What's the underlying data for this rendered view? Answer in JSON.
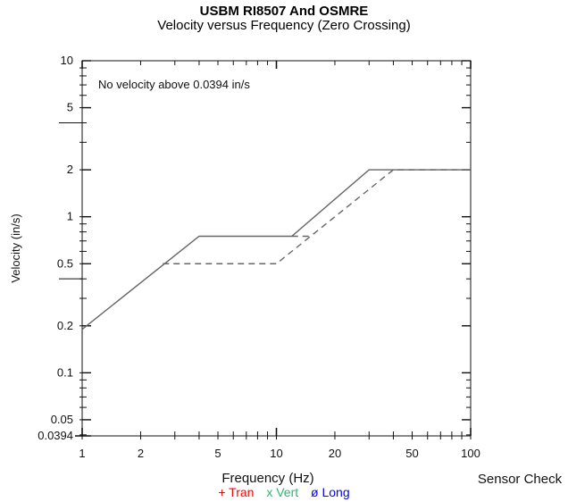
{
  "chart_data": {
    "type": "line",
    "title": "USBM RI8507 And OSMRE",
    "subtitle": "Velocity versus Frequency (Zero Crossing)",
    "xlabel": "Frequency (Hz)",
    "ylabel": "Velocity (in/s)",
    "xscale": "log",
    "yscale": "log",
    "xlim": [
      1,
      100
    ],
    "ylim": [
      0.0394,
      10
    ],
    "x_ticks": [
      1,
      2,
      5,
      10,
      20,
      50,
      100
    ],
    "y_ticks": [
      0.0394,
      0.05,
      0.1,
      0.2,
      0.5,
      1,
      2,
      5,
      10
    ],
    "y_tick_labels": [
      "0.0394",
      "0.05",
      "0.1",
      "0.2",
      "0.5",
      "1",
      "2",
      "5",
      "10"
    ],
    "grid": false,
    "annotation": "No velocity above 0.0394 in/s",
    "side_label": "Sensor Check",
    "series": [
      {
        "style": "solid",
        "x": [
          1,
          4,
          12,
          30,
          100
        ],
        "y": [
          0.19,
          0.75,
          0.75,
          2.0,
          2.0
        ]
      },
      {
        "style": "dashed",
        "x": [
          2.6,
          10,
          40,
          100
        ],
        "y": [
          0.5,
          0.5,
          2.0,
          2.0
        ]
      },
      {
        "style": "dashed",
        "x": [
          12,
          15
        ],
        "y": [
          0.75,
          0.75
        ]
      }
    ],
    "legend": [
      {
        "label": "+ Tran",
        "color": "#ff0000"
      },
      {
        "label": "x Vert",
        "color": "#2bb673"
      },
      {
        "label": "ø Long",
        "color": "#0000ff"
      }
    ]
  }
}
